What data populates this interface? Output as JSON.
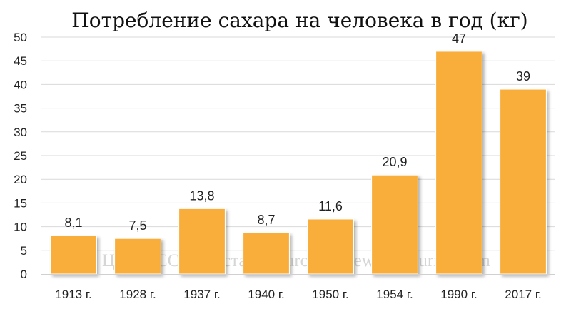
{
  "chart_data": {
    "type": "bar",
    "title": "Потребление сахара на человека в год (кг)",
    "categories": [
      "1913 г.",
      "1928 г.",
      "1937 г.",
      "1940 г.",
      "1950 г.",
      "1954 г.",
      "1990 г.",
      "2017 г."
    ],
    "values": [
      8.1,
      7.5,
      13.8,
      8.7,
      11.6,
      20.9,
      47,
      39
    ],
    "data_labels": [
      "8,1",
      "7,5",
      "13,8",
      "8,7",
      "11,6",
      "20,9",
      "47",
      "39"
    ],
    "ylim": [
      0,
      50
    ],
    "yticks": [
      0,
      5,
      10,
      15,
      20,
      25,
      30,
      35,
      40,
      45,
      50
    ],
    "grid": true,
    "bar_color": "#f9ae3b",
    "xlabel": "",
    "ylabel": ""
  },
  "watermark": "ЦСУ СССР, Росстат © burckina-new.livejournal.com"
}
